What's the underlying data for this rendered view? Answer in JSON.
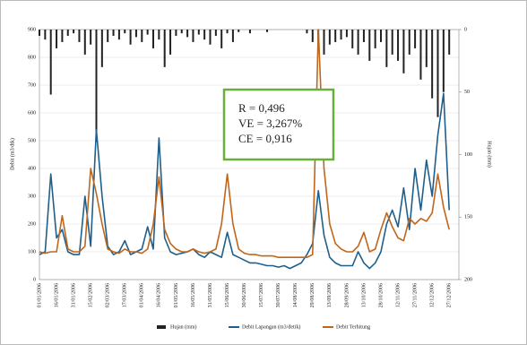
{
  "chart_data": {
    "type": "line",
    "y_label": "Debit (m3/dtk)",
    "y2_label": "Hujan (mm)",
    "annotations": [
      "R   = 0,496",
      "VE = 3,267%",
      "CE = 0,916"
    ],
    "categories": [
      "01/01/2006",
      null,
      null,
      "16/01/2006",
      null,
      null,
      "31/01/2006",
      null,
      null,
      "15/02/2006",
      null,
      null,
      "02/03/2006",
      null,
      null,
      "17/03/2006",
      null,
      null,
      "01/04/2006",
      null,
      null,
      "16/04/2006",
      null,
      null,
      "01/05/2006",
      null,
      null,
      "16/05/2006",
      null,
      null,
      "31/05/2006",
      null,
      null,
      "15/06/2006",
      null,
      null,
      "30/06/2006",
      null,
      null,
      "15/07/2006",
      null,
      null,
      "30/07/2006",
      null,
      null,
      "14/08/2006",
      null,
      null,
      "29/08/2006",
      null,
      null,
      "13/09/2006",
      null,
      null,
      "28/09/2006",
      null,
      null,
      "13/10/2006",
      null,
      null,
      "28/10/2006",
      null,
      null,
      "12/11/2006",
      null,
      null,
      "27/11/2006",
      null,
      null,
      "12/12/2006",
      null,
      null,
      "27/12/2006"
    ],
    "series": [
      {
        "name": "Hujan (mm)",
        "color": "#222222",
        "axis": "y2",
        "values": [
          5,
          8,
          52,
          15,
          10,
          5,
          3,
          10,
          20,
          12,
          90,
          30,
          10,
          5,
          8,
          3,
          12,
          6,
          10,
          4,
          15,
          8,
          30,
          20,
          5,
          3,
          6,
          10,
          4,
          8,
          12,
          5,
          15,
          3,
          10,
          2,
          0,
          3,
          0,
          0,
          2,
          0,
          0,
          0,
          0,
          0,
          0,
          3,
          10,
          15,
          20,
          12,
          10,
          8,
          6,
          15,
          20,
          10,
          25,
          15,
          10,
          30,
          20,
          25,
          35,
          20,
          15,
          40,
          30,
          55,
          70,
          50,
          20
        ]
      },
      {
        "name": "Debit Lapangan (m3/detik)",
        "color": "#1f5f8b",
        "values": [
          90,
          100,
          380,
          150,
          180,
          100,
          90,
          90,
          300,
          120,
          540,
          300,
          120,
          90,
          100,
          140,
          90,
          100,
          110,
          190,
          110,
          510,
          150,
          100,
          90,
          95,
          100,
          110,
          90,
          80,
          100,
          90,
          80,
          170,
          90,
          80,
          70,
          60,
          60,
          55,
          50,
          50,
          45,
          50,
          40,
          50,
          60,
          90,
          130,
          320,
          160,
          80,
          60,
          50,
          50,
          50,
          100,
          60,
          40,
          60,
          100,
          200,
          250,
          190,
          330,
          180,
          400,
          250,
          430,
          300,
          520,
          670,
          250
        ]
      },
      {
        "name": "Debit Terhitung",
        "color": "#c0661a",
        "values": [
          100,
          95,
          100,
          100,
          230,
          110,
          100,
          100,
          120,
          400,
          310,
          200,
          110,
          100,
          95,
          110,
          100,
          100,
          95,
          110,
          200,
          370,
          180,
          130,
          110,
          100,
          100,
          110,
          100,
          95,
          100,
          110,
          200,
          380,
          200,
          110,
          95,
          90,
          90,
          85,
          85,
          85,
          80,
          80,
          80,
          80,
          80,
          80,
          90,
          900,
          400,
          200,
          130,
          110,
          100,
          100,
          120,
          170,
          100,
          110,
          180,
          240,
          190,
          150,
          140,
          220,
          200,
          220,
          210,
          240,
          380,
          260,
          180
        ]
      }
    ],
    "ylim": [
      0,
      900
    ],
    "yticks": [
      0,
      100,
      200,
      300,
      400,
      500,
      600,
      700,
      800,
      900
    ],
    "y2lim": [
      0,
      200
    ],
    "y2ticks": [
      0,
      50,
      100,
      150,
      200
    ],
    "y2_inverted": true,
    "grid": true,
    "legend": "bottom"
  }
}
